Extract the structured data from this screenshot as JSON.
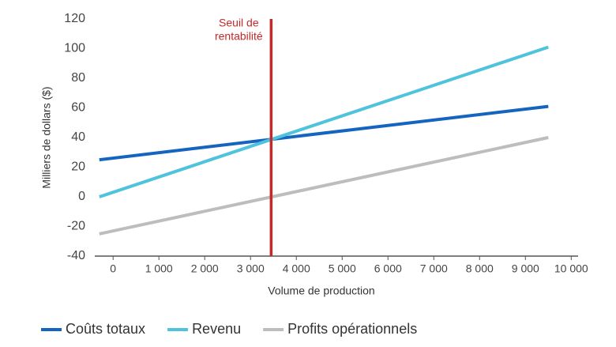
{
  "chart_data": {
    "type": "line",
    "x_label": "Volume de production",
    "y_label": "Milliers de dollars ($)",
    "x": [
      -300,
      9500
    ],
    "series": [
      {
        "name": "Coûts totaux",
        "color": "#1565c0",
        "values": [
          25,
          61
        ]
      },
      {
        "name": "Revenu",
        "color": "#4fc3dd",
        "values": [
          0,
          101
        ]
      },
      {
        "name": "Profits opérationnels",
        "color": "#bdbdbd",
        "values": [
          -25,
          40
        ]
      }
    ],
    "breakeven": {
      "x": 3450,
      "color": "#c62828",
      "label": [
        "Seuil de",
        "rentabilité"
      ]
    },
    "xlim": [
      -400,
      10150
    ],
    "xticks": [
      0,
      {
        "value": 1000,
        "label": "1 000"
      },
      {
        "value": 2000,
        "label": "2 000"
      },
      {
        "value": 3000,
        "label": "3 000"
      },
      {
        "value": 4000,
        "label": "4 000"
      },
      {
        "value": 5000,
        "label": "5 000"
      },
      {
        "value": 6000,
        "label": "6 000"
      },
      {
        "value": 7000,
        "label": "7 000"
      },
      {
        "value": 8000,
        "label": "8 000"
      },
      {
        "value": 9000,
        "label": "9 000"
      },
      {
        "value": 10000,
        "label": "10 000"
      }
    ],
    "ylim": [
      -40,
      120
    ],
    "yticks": [
      -40,
      -20,
      0,
      20,
      40,
      60,
      80,
      100,
      120
    ],
    "grid": false,
    "legend": "bottom"
  }
}
